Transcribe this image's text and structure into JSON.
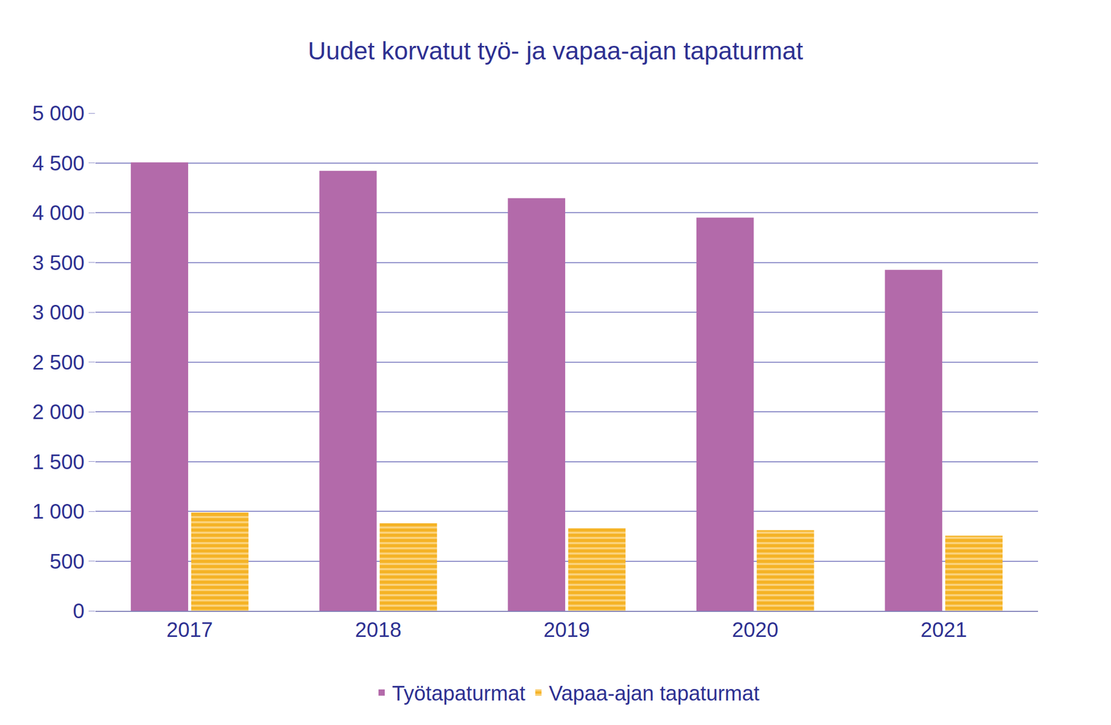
{
  "chart_data": {
    "type": "bar",
    "title": "Uudet korvatut työ- ja vapaa-ajan tapaturmat",
    "categories": [
      "2017",
      "2018",
      "2019",
      "2020",
      "2021"
    ],
    "series": [
      {
        "name": "Työtapaturmat",
        "color": "#b36aaa",
        "values": [
          4505,
          4420,
          4145,
          3950,
          3425
        ]
      },
      {
        "name": "Vapaa-ajan tapaturmat",
        "color": "#f5b326",
        "values": [
          990,
          880,
          830,
          810,
          755
        ]
      }
    ],
    "ylim": [
      0,
      5000
    ],
    "yticks": [
      0,
      500,
      {
        "value": 1000,
        "label": "1 000"
      },
      {
        "value": 1500,
        "label": "1 500"
      },
      {
        "value": 2000,
        "label": "2 000"
      },
      {
        "value": 2500,
        "label": "2 500"
      },
      {
        "value": 3000,
        "label": "3 000"
      },
      {
        "value": 3500,
        "label": "3 500"
      },
      {
        "value": 4000,
        "label": "4 000"
      },
      {
        "value": 4500,
        "label": "4 500"
      },
      {
        "value": 5000,
        "label": "5 000"
      }
    ],
    "grid": true,
    "legend": "bottom"
  }
}
